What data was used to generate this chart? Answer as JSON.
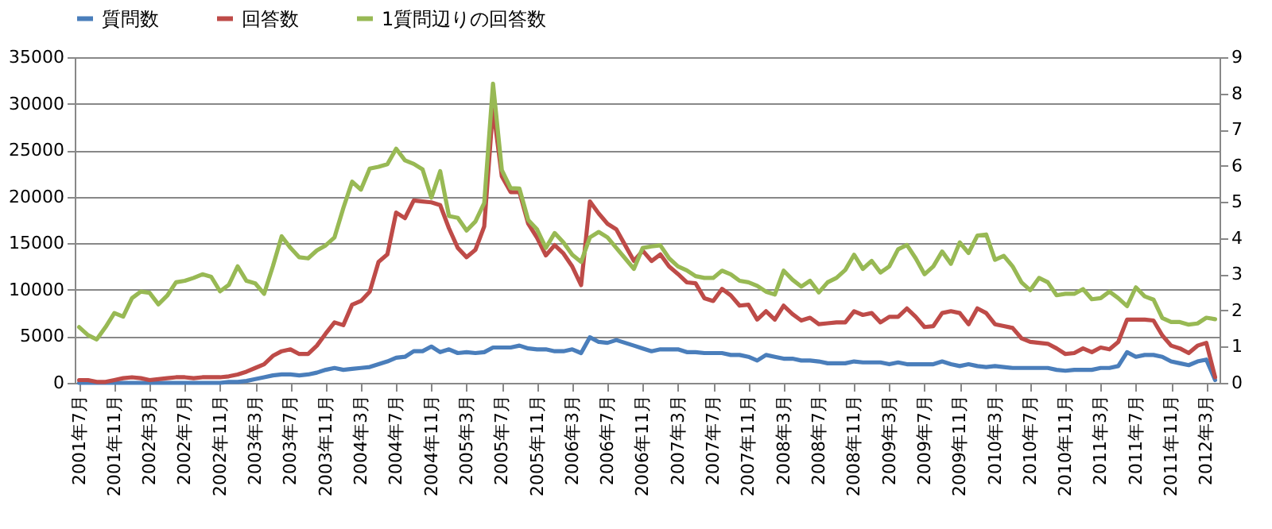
{
  "chart_data": {
    "type": "line",
    "categories": [
      "2001年7月",
      null,
      null,
      null,
      "2001年11月",
      null,
      null,
      null,
      "2002年3月",
      null,
      null,
      null,
      "2002年7月",
      null,
      null,
      null,
      "2002年11月",
      null,
      null,
      null,
      "2003年3月",
      null,
      null,
      null,
      "2003年7月",
      null,
      null,
      null,
      "2003年11月",
      null,
      null,
      null,
      "2004年3月",
      null,
      null,
      null,
      "2004年7月",
      null,
      null,
      null,
      "2004年11月",
      null,
      null,
      null,
      "2005年3月",
      null,
      null,
      null,
      "2005年7月",
      null,
      null,
      null,
      "2005年11月",
      null,
      null,
      null,
      "2006年3月",
      null,
      null,
      null,
      "2006年7月",
      null,
      null,
      null,
      "2006年11月",
      null,
      null,
      null,
      "2007年3月",
      null,
      null,
      null,
      "2007年7月",
      null,
      null,
      null,
      "2007年11月",
      null,
      null,
      null,
      "2008年3月",
      null,
      null,
      null,
      "2008年7月",
      null,
      null,
      null,
      "2008年11月",
      null,
      null,
      null,
      "2009年3月",
      null,
      null,
      null,
      "2009年7月",
      null,
      null,
      null,
      "2009年11月",
      null,
      null,
      null,
      "2010年3月",
      null,
      null,
      null,
      "2010年7月",
      null,
      null,
      null,
      "2010年11月",
      null,
      null,
      null,
      "2011年3月",
      null,
      null,
      null,
      "2011年7月",
      null,
      null,
      null,
      "2011年11月",
      null,
      null,
      null,
      "2012年3月",
      null
    ],
    "series": [
      {
        "name": "質問数",
        "color": "#4a7ebb",
        "values": [
          0,
          0,
          0,
          0,
          0,
          0,
          0,
          0,
          0,
          0,
          0,
          0,
          0,
          0,
          0,
          0,
          0,
          100,
          100,
          200,
          400,
          600,
          800,
          900,
          900,
          800,
          900,
          1100,
          1400,
          1600,
          1400,
          1500,
          1600,
          1700,
          2000,
          2300,
          2700,
          2800,
          3400,
          3400,
          3900,
          3300,
          3600,
          3200,
          3300,
          3200,
          3300,
          3800,
          3800,
          3800,
          4000,
          3700,
          3600,
          3600,
          3400,
          3400,
          3600,
          3200,
          4900,
          4400,
          4300,
          4600,
          4300,
          4000,
          3700,
          3400,
          3600,
          3600,
          3600,
          3300,
          3300,
          3200,
          3200,
          3200,
          3000,
          3000,
          2800,
          2400,
          3000,
          2800,
          2600,
          2600,
          2400,
          2400,
          2300,
          2100,
          2100,
          2100,
          2300,
          2200,
          2200,
          2200,
          2000,
          2200,
          2000,
          2000,
          2000,
          2000,
          2300,
          2000,
          1800,
          2000,
          1800,
          1700,
          1800,
          1700,
          1600,
          1600,
          1600,
          1600,
          1600,
          1400,
          1300,
          1400,
          1400,
          1400,
          1600,
          1600,
          1800,
          3300,
          2800,
          3000,
          3000,
          2800,
          2300,
          2100,
          1900,
          2300,
          2500,
          300
        ]
      },
      {
        "name": "回答数",
        "color": "#be4b48",
        "values": [
          300,
          300,
          100,
          100,
          300,
          500,
          600,
          500,
          300,
          400,
          500,
          600,
          600,
          500,
          600,
          600,
          600,
          700,
          900,
          1200,
          1600,
          2000,
          2900,
          3400,
          3600,
          3100,
          3100,
          4000,
          5300,
          6500,
          6200,
          8400,
          8800,
          9800,
          13000,
          13800,
          18300,
          17700,
          19600,
          19500,
          19400,
          19100,
          16600,
          14500,
          13500,
          14300,
          16800,
          29600,
          22200,
          20500,
          20500,
          17100,
          15600,
          13700,
          14800,
          13900,
          12500,
          10500,
          19500,
          18200,
          17100,
          16500,
          14800,
          13100,
          14200,
          13100,
          13800,
          12500,
          11700,
          10800,
          10700,
          9100,
          8800,
          10100,
          9400,
          8300,
          8400,
          6800,
          7700,
          6800,
          8300,
          7400,
          6700,
          7000,
          6300,
          6400,
          6500,
          6500,
          7700,
          7300,
          7500,
          6500,
          7100,
          7100,
          8000,
          7100,
          6000,
          6100,
          7500,
          7700,
          7500,
          6300,
          8000,
          7500,
          6300,
          6100,
          5900,
          4800,
          4400,
          4300,
          4200,
          3700,
          3100,
          3200,
          3700,
          3300,
          3800,
          3600,
          4400,
          6800,
          6800,
          6800,
          6700,
          5100,
          4000,
          3700,
          3200,
          4000,
          4300,
          600
        ]
      },
      {
        "name": "1質問辺りの回答数",
        "color": "#98b954",
        "axis": "y2",
        "values": [
          1.54,
          1.32,
          1.2,
          1.54,
          1.93,
          1.83,
          2.34,
          2.52,
          2.49,
          2.17,
          2.41,
          2.78,
          2.82,
          2.9,
          3.0,
          2.93,
          2.53,
          2.71,
          3.22,
          2.82,
          2.75,
          2.46,
          3.22,
          4.05,
          3.73,
          3.47,
          3.44,
          3.66,
          3.8,
          4.02,
          4.83,
          5.56,
          5.34,
          5.92,
          5.97,
          6.04,
          6.47,
          6.15,
          6.05,
          5.9,
          5.12,
          5.85,
          4.61,
          4.56,
          4.21,
          4.46,
          4.97,
          8.27,
          5.88,
          5.38,
          5.37,
          4.5,
          4.24,
          3.73,
          4.14,
          3.88,
          3.54,
          3.34,
          4.02,
          4.17,
          4.02,
          3.73,
          3.44,
          3.15,
          3.73,
          3.77,
          3.8,
          3.44,
          3.22,
          3.11,
          2.95,
          2.9,
          2.9,
          3.1,
          3.0,
          2.82,
          2.78,
          2.68,
          2.52,
          2.44,
          3.1,
          2.85,
          2.66,
          2.82,
          2.5,
          2.78,
          2.9,
          3.12,
          3.54,
          3.15,
          3.37,
          3.05,
          3.22,
          3.69,
          3.81,
          3.44,
          3.0,
          3.22,
          3.63,
          3.29,
          3.88,
          3.59,
          4.07,
          4.1,
          3.4,
          3.51,
          3.22,
          2.78,
          2.56,
          2.9,
          2.78,
          2.42,
          2.46,
          2.46,
          2.59,
          2.31,
          2.34,
          2.52,
          2.34,
          2.12,
          2.64,
          2.39,
          2.3,
          1.79,
          1.68,
          1.68,
          1.61,
          1.64,
          1.8,
          1.76
        ]
      }
    ],
    "ylim": [
      0,
      35000
    ],
    "yticks": [
      0,
      5000,
      10000,
      15000,
      20000,
      25000,
      30000,
      35000
    ],
    "y2lim": [
      0,
      9
    ],
    "y2ticks": [
      0,
      1,
      2,
      3,
      4,
      5,
      6,
      7,
      8,
      9
    ],
    "grid": "y",
    "legend": "top",
    "marker": "none",
    "line_style": "solid"
  }
}
